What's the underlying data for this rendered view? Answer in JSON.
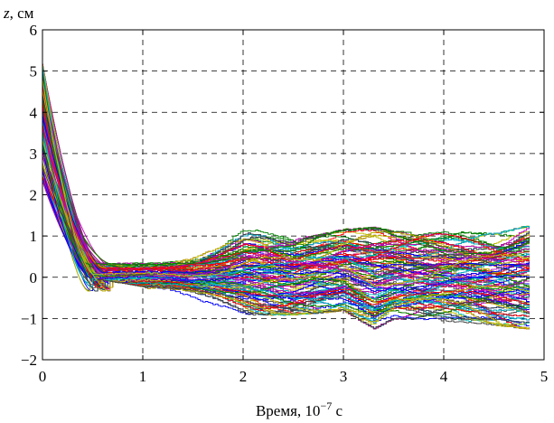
{
  "chart_data": {
    "type": "line",
    "title": "",
    "xlabel_main": "Время, 10",
    "xlabel_exp": "−7",
    "xlabel_unit": " с",
    "ylabel_var": "z",
    "ylabel_unit": ", см",
    "xlim": [
      0,
      5
    ],
    "ylim": [
      -2,
      6
    ],
    "xticks": [
      "0",
      "1",
      "2",
      "3",
      "4",
      "5"
    ],
    "yticks": [
      "−2",
      "−1",
      "0",
      "1",
      "2",
      "3",
      "4",
      "5",
      "6"
    ],
    "grid": true,
    "grid_style": "dashed",
    "legend": "none",
    "series_description": {
      "count_approx": 300,
      "x_end": 4.85,
      "start_range": [
        2.3,
        5.2
      ],
      "approach_end_x_range": [
        0.45,
        0.7
      ],
      "late_spread_range": [
        -1.25,
        1.3
      ]
    },
    "envelope": {
      "x": [
        0,
        0.5,
        1,
        1.5,
        2,
        2.5,
        3,
        3.3,
        3.5,
        4,
        4.5,
        4.85
      ],
      "upper": [
        5.2,
        0.55,
        0.55,
        0.8,
        1.25,
        0.95,
        1.2,
        1.25,
        1.15,
        1.15,
        1.1,
        1.3
      ],
      "lower": [
        2.3,
        -0.05,
        -0.25,
        -0.7,
        -0.95,
        -0.95,
        -0.85,
        -1.3,
        -1.05,
        -1.1,
        -1.2,
        -1.3
      ]
    },
    "palette": [
      "#0000ff",
      "#008000",
      "#ff0000",
      "#00bfbf",
      "#bf00bf",
      "#bfbf00",
      "#404040"
    ]
  }
}
